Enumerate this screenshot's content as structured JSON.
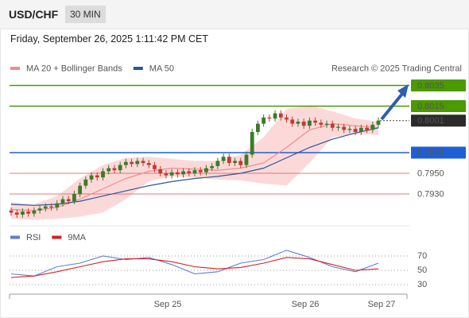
{
  "header": {
    "symbol": "USD/CHF",
    "timeframe": "30 MIN",
    "datetime": "Friday, September 26, 2025 1:11:42 PM CET"
  },
  "chart_data": [
    {
      "type": "candlestick",
      "source": "Research © 2025 Trading Central",
      "up_color": "#3c7a2a",
      "down_color": "#c23b30",
      "ylim": [
        0.79,
        0.806
      ],
      "open": [
        0.7914,
        0.7912,
        0.791,
        0.7913,
        0.7911,
        0.7914,
        0.7916,
        0.7918,
        0.7917,
        0.7921,
        0.7925,
        0.7923,
        0.793,
        0.7938,
        0.7944,
        0.7948,
        0.7946,
        0.7952,
        0.7955,
        0.7953,
        0.7958,
        0.7961,
        0.7959,
        0.7962,
        0.796,
        0.7958,
        0.7954,
        0.795,
        0.7948,
        0.7951,
        0.7949,
        0.7952,
        0.795,
        0.7953,
        0.7951,
        0.7955,
        0.7957,
        0.7962,
        0.7966,
        0.796,
        0.7962,
        0.7958,
        0.7968,
        0.799,
        0.7998,
        0.8004,
        0.8003,
        0.8008,
        0.8004,
        0.8002,
        0.7998,
        0.8,
        0.7996,
        0.8001,
        0.7999,
        0.7997,
        0.7998,
        0.7994,
        0.7995,
        0.7992,
        0.7993,
        0.799,
        0.7994,
        0.7992,
        0.7997
      ],
      "high": [
        0.7917,
        0.7915,
        0.7916,
        0.7916,
        0.7917,
        0.7919,
        0.7921,
        0.7921,
        0.7924,
        0.7928,
        0.7928,
        0.7933,
        0.7941,
        0.7947,
        0.7951,
        0.7951,
        0.7955,
        0.7958,
        0.7958,
        0.7961,
        0.7964,
        0.7964,
        0.7965,
        0.7965,
        0.7963,
        0.7961,
        0.7957,
        0.7953,
        0.7954,
        0.7954,
        0.7955,
        0.7955,
        0.7956,
        0.7956,
        0.7958,
        0.796,
        0.7965,
        0.7969,
        0.7969,
        0.7965,
        0.7965,
        0.7971,
        0.7993,
        0.8001,
        0.8007,
        0.8007,
        0.8011,
        0.8011,
        0.8007,
        0.8005,
        0.8003,
        0.8003,
        0.8004,
        0.8004,
        0.8002,
        0.8001,
        0.8001,
        0.7998,
        0.7998,
        0.7996,
        0.7996,
        0.7997,
        0.7997,
        0.8,
        0.8004
      ],
      "low": [
        0.7909,
        0.7907,
        0.7907,
        0.7908,
        0.7908,
        0.7911,
        0.7913,
        0.7914,
        0.7914,
        0.7918,
        0.792,
        0.792,
        0.7927,
        0.7935,
        0.7941,
        0.7943,
        0.7943,
        0.7949,
        0.795,
        0.795,
        0.7955,
        0.7956,
        0.7956,
        0.7957,
        0.7955,
        0.7951,
        0.7947,
        0.7945,
        0.7945,
        0.7946,
        0.7946,
        0.7947,
        0.7947,
        0.7948,
        0.7948,
        0.7952,
        0.7954,
        0.7959,
        0.7957,
        0.7957,
        0.7955,
        0.7955,
        0.7965,
        0.7987,
        0.7995,
        0.8,
        0.8,
        0.8001,
        0.7999,
        0.7995,
        0.7995,
        0.7993,
        0.7993,
        0.7996,
        0.7994,
        0.7994,
        0.7991,
        0.7991,
        0.7989,
        0.7989,
        0.7987,
        0.7987,
        0.7989,
        0.7989,
        0.7994
      ],
      "close": [
        0.7912,
        0.791,
        0.7913,
        0.7911,
        0.7914,
        0.7916,
        0.7918,
        0.7917,
        0.7921,
        0.7925,
        0.7923,
        0.793,
        0.7938,
        0.7944,
        0.7948,
        0.7946,
        0.7952,
        0.7955,
        0.7953,
        0.7958,
        0.7961,
        0.7959,
        0.7962,
        0.796,
        0.7958,
        0.7954,
        0.795,
        0.7948,
        0.7951,
        0.7949,
        0.7952,
        0.795,
        0.7953,
        0.7951,
        0.7955,
        0.7957,
        0.7962,
        0.7966,
        0.796,
        0.7962,
        0.7958,
        0.7968,
        0.799,
        0.7998,
        0.8004,
        0.8003,
        0.8008,
        0.8004,
        0.8002,
        0.7998,
        0.8,
        0.7996,
        0.8001,
        0.7999,
        0.7997,
        0.7998,
        0.7994,
        0.7995,
        0.7992,
        0.7993,
        0.799,
        0.7994,
        0.7992,
        0.7997,
        0.8001
      ],
      "series": [
        {
          "name": "MA 20 + Bollinger Bands",
          "color": "#f28b8b",
          "band_color": "#fcd9d9",
          "values": [
            0.7915,
            0.7914,
            0.7917,
            0.7925,
            0.7935,
            0.7945,
            0.7952,
            0.7955,
            0.7954,
            0.7953,
            0.7955,
            0.796,
            0.7975,
            0.7992,
            0.7998,
            0.7996,
            0.7994
          ],
          "upper": [
            0.7922,
            0.792,
            0.7928,
            0.7945,
            0.7958,
            0.7965,
            0.7966,
            0.7964,
            0.7962,
            0.7962,
            0.7968,
            0.7985,
            0.8012,
            0.8016,
            0.801,
            0.8003,
            0.8
          ],
          "lower": [
            0.7906,
            0.7905,
            0.7906,
            0.7908,
            0.7912,
            0.7925,
            0.7942,
            0.7947,
            0.7946,
            0.7944,
            0.7943,
            0.794,
            0.7938,
            0.796,
            0.7985,
            0.7988,
            0.7987
          ]
        },
        {
          "name": "MA 50",
          "color": "#2d5696",
          "values": [
            0.792,
            0.7919,
            0.792,
            0.7923,
            0.7928,
            0.7933,
            0.7938,
            0.7942,
            0.7945,
            0.7947,
            0.795,
            0.7955,
            0.7965,
            0.7975,
            0.7983,
            0.7989,
            0.7994
          ]
        }
      ],
      "levels": [
        {
          "value": 0.8035,
          "label": "0.8035",
          "color": "#4a9a00",
          "boxed": true,
          "dotted": false
        },
        {
          "value": 0.8015,
          "label": "0.8015",
          "color": "#4a9a00",
          "boxed": true,
          "dotted": false
        },
        {
          "value": 0.8001,
          "label": "0.8001",
          "color": "#2b2b2b",
          "boxed": true,
          "dotted": true
        },
        {
          "value": 0.797,
          "label": "0.7970",
          "color": "#1f5fd6",
          "boxed": true,
          "dotted": false
        },
        {
          "value": 0.795,
          "label": "0.7950",
          "color": "#d9534f",
          "boxed": false,
          "dotted": false
        },
        {
          "value": 0.793,
          "label": "0.7930",
          "color": "#d9534f",
          "boxed": false,
          "dotted": false
        }
      ]
    },
    {
      "type": "line",
      "ylim": [
        20,
        80
      ],
      "yticks": [
        70,
        50,
        30
      ],
      "grid": true,
      "xlabels": [
        "Sep 25",
        "Sep 26",
        "Sep 27"
      ],
      "series": [
        {
          "name": "RSI",
          "color": "#5b7fd6",
          "values": [
            45,
            42,
            55,
            60,
            70,
            65,
            68,
            58,
            45,
            48,
            60,
            65,
            78,
            68,
            55,
            48,
            60
          ]
        },
        {
          "name": "9MA",
          "color": "#d62020",
          "values": [
            40,
            42,
            48,
            55,
            62,
            66,
            66,
            62,
            55,
            52,
            54,
            60,
            68,
            66,
            58,
            50,
            52
          ]
        }
      ]
    }
  ]
}
